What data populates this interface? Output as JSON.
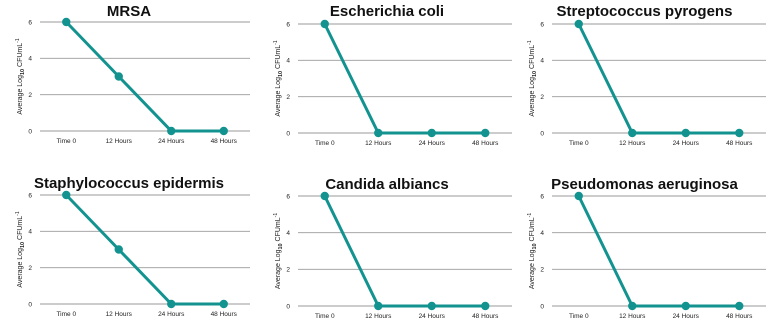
{
  "colors": {
    "series": "#129390",
    "grid": "#9a9a9a"
  },
  "chart_data": [
    {
      "type": "line",
      "title": "MRSA",
      "ylabel": "Average Log10 CFUmL-1",
      "ylabel_parts": {
        "pre": "Average Log",
        "sub": "10",
        "mid": " CFUmL",
        "sup": "-1"
      },
      "categories": [
        "Time 0",
        "12 Hours",
        "24 Hours",
        "48 Hours"
      ],
      "values": [
        6,
        3,
        0,
        0
      ],
      "yticks": [
        0,
        2,
        4,
        6
      ],
      "ylim": [
        0,
        6
      ]
    },
    {
      "type": "line",
      "title": "Escherichia coli",
      "ylabel": "Average Log10 CFUmL-1",
      "ylabel_parts": {
        "pre": "Average Log",
        "sub": "10",
        "mid": " CFUmL",
        "sup": "-1"
      },
      "categories": [
        "Time 0",
        "12 Hours",
        "24 Hours",
        "48 Hours"
      ],
      "values": [
        6,
        0,
        0,
        0
      ],
      "yticks": [
        0,
        2,
        4,
        6
      ],
      "ylim": [
        0,
        6
      ]
    },
    {
      "type": "line",
      "title": "Streptococcus pyrogens",
      "ylabel": "Average Log10 CFUmL-1",
      "ylabel_parts": {
        "pre": "Average Log",
        "sub": "10",
        "mid": " CFUmL",
        "sup": "-1"
      },
      "categories": [
        "Time 0",
        "12 Hours",
        "24 Hours",
        "48 Hours"
      ],
      "values": [
        6,
        0,
        0,
        0
      ],
      "yticks": [
        0,
        2,
        4,
        6
      ],
      "ylim": [
        0,
        6
      ]
    },
    {
      "type": "line",
      "title": "Staphylococcus epidermis",
      "ylabel": "Average Log10 CFUmL-1",
      "ylabel_parts": {
        "pre": "Average Log",
        "sub": "10",
        "mid": " CFUmL",
        "sup": "-1"
      },
      "categories": [
        "Time 0",
        "12 Hours",
        "24 Hours",
        "48 Hours"
      ],
      "values": [
        6,
        3,
        0,
        0
      ],
      "yticks": [
        0,
        2,
        4,
        6
      ],
      "ylim": [
        0,
        6
      ]
    },
    {
      "type": "line",
      "title": "Candida albiancs",
      "ylabel": "Average Log10 CFUmL-1",
      "ylabel_parts": {
        "pre": "Average Log",
        "sub": "10",
        "mid": " CFUmL",
        "sup": "-1"
      },
      "categories": [
        "Time 0",
        "12 Hours",
        "24 Hours",
        "48 Hours"
      ],
      "values": [
        6,
        0,
        0,
        0
      ],
      "yticks": [
        0,
        2,
        4,
        6
      ],
      "ylim": [
        0,
        6
      ]
    },
    {
      "type": "line",
      "title": "Pseudomonas aeruginosa",
      "ylabel": "Average Log10 CFUmL-1",
      "ylabel_parts": {
        "pre": "Average Log",
        "sub": "10",
        "mid": " CFUmL",
        "sup": "-1"
      },
      "categories": [
        "Time 0",
        "12 Hours",
        "24 Hours",
        "48 Hours"
      ],
      "values": [
        6,
        0,
        0,
        0
      ],
      "yticks": [
        0,
        2,
        4,
        6
      ],
      "ylim": [
        0,
        6
      ]
    }
  ]
}
